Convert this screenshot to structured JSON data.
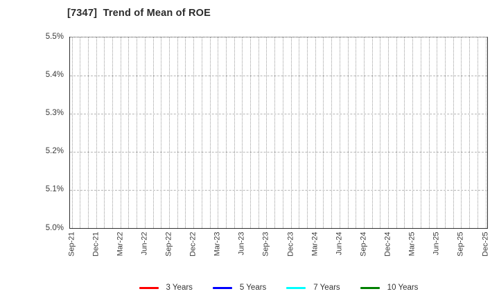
{
  "page": {
    "background": "#ffffff"
  },
  "chart_data": {
    "type": "line",
    "title": "[7347]  Trend of Mean of ROE",
    "x_labels": [
      "Sep-21",
      "Dec-21",
      "Mar-22",
      "Jun-22",
      "Sep-22",
      "Dec-22",
      "Mar-23",
      "Jun-23",
      "Sep-23",
      "Dec-23",
      "Mar-24",
      "Jun-24",
      "Sep-24",
      "Dec-24",
      "Mar-25",
      "Jun-25",
      "Sep-25",
      "Dec-25"
    ],
    "x_tick_interval_months": 3,
    "minor_vertical_grid": "monthly",
    "ylim": [
      5.0,
      5.5
    ],
    "ytick_labels_top_to_bottom": [
      "5.5%",
      "5.4%",
      "5.3%",
      "5.2%",
      "5.1%",
      "5.0%"
    ],
    "grid": true,
    "legend_position": "bottom",
    "series": [
      {
        "name": "3 Years",
        "color": "#ff0000",
        "values": []
      },
      {
        "name": "5 Years",
        "color": "#0000ff",
        "values": []
      },
      {
        "name": "7 Years",
        "color": "#00ffff",
        "values": []
      },
      {
        "name": "10 Years",
        "color": "#008000",
        "values": []
      }
    ],
    "colors": {
      "axis_frame": "#2f2f2f",
      "vertical_grid": "#9b9b9b",
      "horizontal_grid": "#b5b5b5",
      "tick_label": "#3a3a3a",
      "title": "#2b2b2b"
    }
  }
}
